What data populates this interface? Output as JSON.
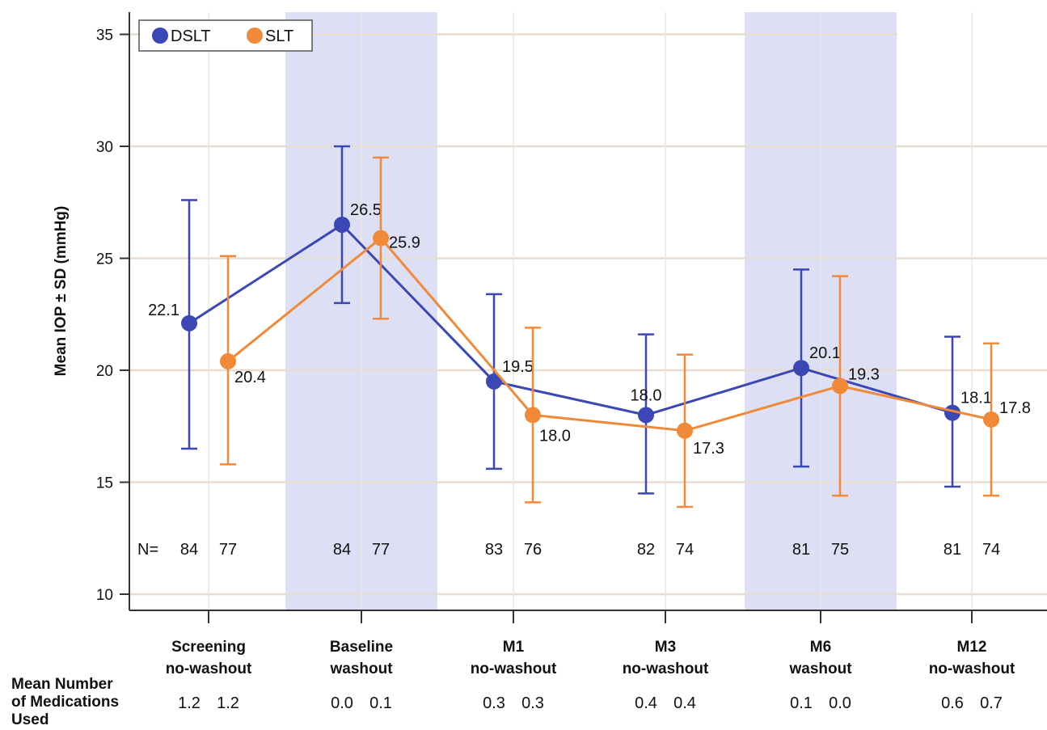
{
  "chart_data": {
    "type": "line",
    "ylabel": "Mean IOP ± SD (mmHg)",
    "ylim": [
      10,
      35
    ],
    "yticks": [
      10,
      15,
      20,
      25,
      30,
      35
    ],
    "grid": true,
    "legend": "top-left",
    "categories": [
      {
        "line1": "Screening",
        "line2": "no-washout",
        "shaded": false
      },
      {
        "line1": "Baseline",
        "line2": "washout",
        "shaded": true
      },
      {
        "line1": "M1",
        "line2": "no-washout",
        "shaded": false
      },
      {
        "line1": "M3",
        "line2": "no-washout",
        "shaded": false
      },
      {
        "line1": "M6",
        "line2": "washout",
        "shaded": true
      },
      {
        "line1": "M12",
        "line2": "no-washout",
        "shaded": false
      }
    ],
    "series": [
      {
        "name": "DSLT",
        "color": "#3a47b5",
        "values": [
          22.1,
          26.5,
          19.5,
          18.0,
          20.1,
          18.1
        ],
        "labels": [
          "22.1",
          "26.5",
          "19.5",
          "18.0",
          "20.1",
          "18.1"
        ],
        "err_low": [
          16.5,
          23.0,
          15.6,
          14.5,
          15.7,
          14.8
        ],
        "err_high": [
          27.6,
          30.0,
          23.4,
          21.6,
          24.5,
          21.5
        ],
        "n": [
          "84",
          "84",
          "83",
          "82",
          "81",
          "81"
        ],
        "meds": [
          "1.2",
          "0.0",
          "0.3",
          "0.4",
          "0.1",
          "0.6"
        ]
      },
      {
        "name": "SLT",
        "color": "#f08a38",
        "values": [
          20.4,
          25.9,
          18.0,
          17.3,
          19.3,
          17.8
        ],
        "labels": [
          "20.4",
          "25.9",
          "18.0",
          "17.3",
          "19.3",
          "17.8"
        ],
        "err_low": [
          15.8,
          22.3,
          14.1,
          13.9,
          14.4,
          14.4
        ],
        "err_high": [
          25.1,
          29.5,
          21.9,
          20.7,
          24.2,
          21.2
        ],
        "n": [
          "77",
          "77",
          "76",
          "74",
          "75",
          "74"
        ],
        "meds": [
          "1.2",
          "0.1",
          "0.3",
          "0.4",
          "0.0",
          "0.7"
        ]
      }
    ],
    "n_prefix": "N=",
    "meds_label": [
      "Mean Number",
      "of Medications",
      "Used"
    ],
    "colors": {
      "shade": "#dde0f5",
      "grid": "#e6dcd2",
      "axis": "#333333"
    }
  }
}
